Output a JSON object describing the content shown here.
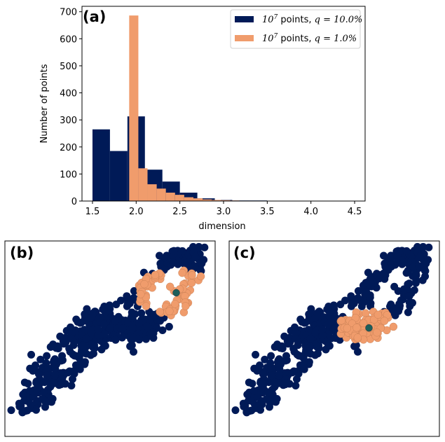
{
  "chart_data": [
    {
      "panel": "(a)",
      "type": "bar",
      "title": "",
      "xlabel": "dimension",
      "ylabel": "Number of points",
      "xlim": [
        1.38,
        4.62
      ],
      "ylim": [
        0,
        720
      ],
      "xticks": [
        "1.5",
        "2.0",
        "2.5",
        "3.0",
        "3.5",
        "4.0",
        "4.5"
      ],
      "yticks": [
        "0",
        "100",
        "200",
        "300",
        "400",
        "500",
        "600",
        "700"
      ],
      "grid": false,
      "legend_position": "top-right",
      "series": [
        {
          "name": "10^7 points, q = 10.0%",
          "legend_prefix": "10",
          "legend_exp": "7",
          "legend_mid": " points, ",
          "legend_q": "q",
          "legend_eq": " = 10.0%",
          "color": "#001a57",
          "bin_edges": [
            1.5,
            1.7,
            1.9,
            2.1,
            2.3,
            2.5,
            2.7,
            2.9,
            3.1,
            3.3,
            3.5
          ],
          "values": [
            265,
            185,
            313,
            116,
            72,
            31,
            10,
            4,
            2,
            2
          ]
        },
        {
          "name": "10^7 points, q = 1.0%",
          "legend_prefix": "10",
          "legend_exp": "7",
          "legend_mid": " points, ",
          "legend_q": "q",
          "legend_eq": " = 1.0%",
          "color": "#f09c6c",
          "bin_edges": [
            1.92,
            2.025,
            2.13,
            2.235,
            2.34,
            2.445,
            2.55,
            2.655,
            2.76,
            2.865,
            2.97,
            3.075,
            3.18
          ],
          "values": [
            686,
            121,
            62,
            46,
            31,
            23,
            14,
            10,
            6,
            4,
            3,
            2
          ]
        }
      ]
    },
    {
      "panel": "(b)",
      "type": "scatter",
      "description": "point cloud with highlighted neighborhood around a selected point (upper-right region)",
      "base_color": "#001a57",
      "highlight_color": "#f09c6c",
      "center_color": "#1e5e5a",
      "center": [
        0.815,
        0.265
      ],
      "highlight_radius": 0.19
    },
    {
      "panel": "(c)",
      "type": "scatter",
      "description": "point cloud with highlighted neighborhood around a selected point (center-right region)",
      "base_color": "#001a57",
      "highlight_color": "#f09c6c",
      "center_color": "#1e5e5a",
      "center": [
        0.665,
        0.445
      ],
      "highlight_radius": 0.15
    }
  ]
}
